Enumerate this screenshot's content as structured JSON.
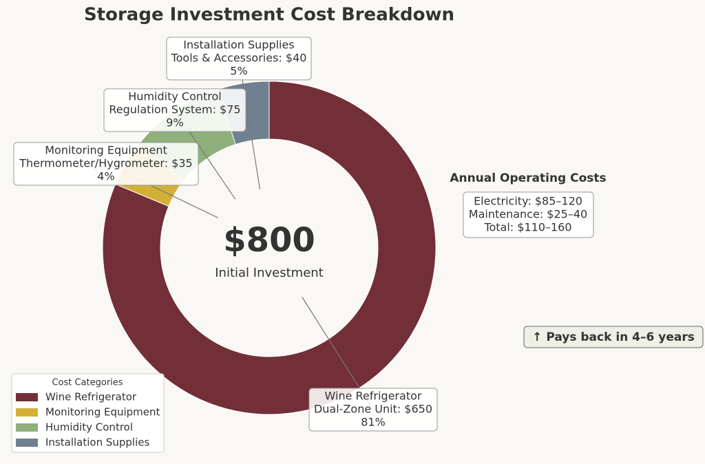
{
  "chart_data": {
    "type": "pie",
    "title": "Storage Investment Cost Breakdown",
    "categories": [
      "Wine Refrigerator",
      "Monitoring Equipment",
      "Humidity Control",
      "Installation Supplies"
    ],
    "values": [
      650,
      35,
      75,
      40
    ],
    "value_labels": [
      "Dual-Zone Unit: $650",
      "Thermometer/Hygrometer: $35",
      "Regulation System: $75",
      "Tools & Accessories: $40"
    ],
    "percent_labels": [
      "81%",
      "4%",
      "9%",
      "5%"
    ],
    "colors": [
      "#722f37",
      "#d4af37",
      "#8fb07a",
      "#708090"
    ],
    "center_label": "$800",
    "center_caption": "Initial Investment",
    "legend_title": "Cost Categories",
    "legend": "lower left",
    "operating_costs": {
      "title": "Annual Operating Costs",
      "lines": [
        "Electricity: $85–120",
        "Maintenance: $25–40",
        "Total: $110–160"
      ]
    },
    "note": "↑ Pays back in 4–6 years"
  }
}
